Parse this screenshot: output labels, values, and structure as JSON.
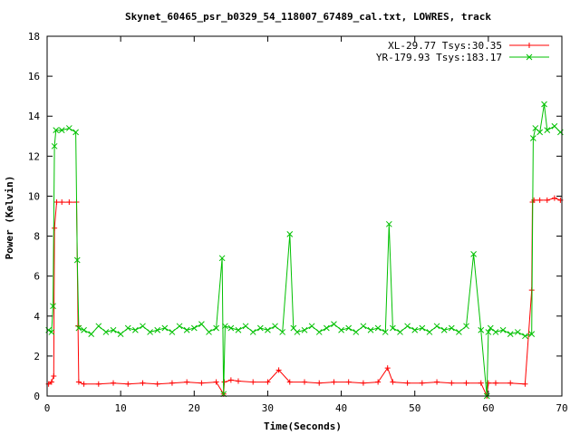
{
  "chart_data": {
    "type": "line",
    "title": "Skynet_60465_psr_b0329_54_118007_67489_cal.txt, LOWRES, track",
    "xlabel": "Time(Seconds)",
    "ylabel": "Power (Kelvin)",
    "xlim": [
      0,
      70
    ],
    "ylim": [
      0,
      18
    ],
    "x_ticks": [
      0,
      10,
      20,
      30,
      40,
      50,
      60,
      70
    ],
    "y_ticks": [
      0,
      2,
      4,
      6,
      8,
      10,
      12,
      14,
      16,
      18
    ],
    "grid": false,
    "legend_position": "top-right",
    "series": [
      {
        "name": "XL-29.77 Tsys:30.35",
        "color": "#ff0000",
        "marker": "plus",
        "x": [
          0.2,
          0.6,
          0.9,
          1.0,
          1.3,
          2.0,
          3.0,
          4.0,
          4.2,
          4.3,
          5,
          7,
          9,
          11,
          13,
          15,
          17,
          19,
          21,
          23,
          24.0,
          24.1,
          25,
          26,
          28,
          30,
          31.5,
          33,
          35,
          37,
          39,
          41,
          43,
          45,
          46.3,
          47,
          49,
          51,
          53,
          55,
          57,
          59,
          59.8,
          60.0,
          61,
          63,
          65,
          65.9,
          66.0,
          66.2,
          67,
          68,
          69,
          69.8
        ],
        "y": [
          0.6,
          0.7,
          1.0,
          8.4,
          9.7,
          9.7,
          9.7,
          9.7,
          3.5,
          0.7,
          0.6,
          0.6,
          0.65,
          0.6,
          0.65,
          0.6,
          0.65,
          0.7,
          0.65,
          0.7,
          0.1,
          0.7,
          0.8,
          0.75,
          0.7,
          0.7,
          1.3,
          0.7,
          0.7,
          0.65,
          0.7,
          0.7,
          0.65,
          0.7,
          1.4,
          0.7,
          0.65,
          0.65,
          0.7,
          0.65,
          0.65,
          0.65,
          0.0,
          0.65,
          0.65,
          0.65,
          0.6,
          5.3,
          9.7,
          9.8,
          9.8,
          9.8,
          9.9,
          9.8
        ]
      },
      {
        "name": "YR-179.93 Tsys:183.17",
        "color": "#00c000",
        "marker": "cross",
        "x": [
          0.2,
          0.6,
          0.8,
          1.0,
          1.2,
          2.0,
          3.0,
          3.9,
          4.1,
          4.3,
          5,
          6,
          7,
          8,
          9,
          10,
          11,
          12,
          13,
          14,
          15,
          16,
          17,
          18,
          19,
          20,
          21,
          22,
          23,
          23.8,
          24.0,
          24.2,
          25,
          26,
          27,
          28,
          29,
          30,
          31,
          32,
          33,
          33.5,
          34,
          35,
          36,
          37,
          38,
          39,
          40,
          41,
          42,
          43,
          44,
          45,
          46,
          46.5,
          47,
          48,
          49,
          50,
          51,
          52,
          53,
          54,
          55,
          56,
          57,
          58,
          59,
          59.8,
          60.0,
          60.3,
          61,
          62,
          63,
          64,
          65,
          65.9,
          66.1,
          66.4,
          67,
          67.6,
          68,
          69,
          69.8
        ],
        "y": [
          3.3,
          3.2,
          4.5,
          12.5,
          13.3,
          13.3,
          13.4,
          13.2,
          6.8,
          3.4,
          3.3,
          3.1,
          3.5,
          3.2,
          3.3,
          3.1,
          3.4,
          3.3,
          3.5,
          3.2,
          3.3,
          3.4,
          3.2,
          3.5,
          3.3,
          3.4,
          3.6,
          3.2,
          3.4,
          6.9,
          0.1,
          3.5,
          3.4,
          3.3,
          3.5,
          3.2,
          3.4,
          3.3,
          3.5,
          3.2,
          8.1,
          3.4,
          3.2,
          3.3,
          3.5,
          3.2,
          3.4,
          3.6,
          3.3,
          3.4,
          3.2,
          3.5,
          3.3,
          3.4,
          3.2,
          8.6,
          3.4,
          3.2,
          3.5,
          3.3,
          3.4,
          3.2,
          3.5,
          3.3,
          3.4,
          3.2,
          3.5,
          7.1,
          3.3,
          0.0,
          3.2,
          3.4,
          3.2,
          3.3,
          3.1,
          3.2,
          3.0,
          3.1,
          12.9,
          13.4,
          13.2,
          14.6,
          13.3,
          13.5,
          13.2
        ]
      }
    ]
  }
}
